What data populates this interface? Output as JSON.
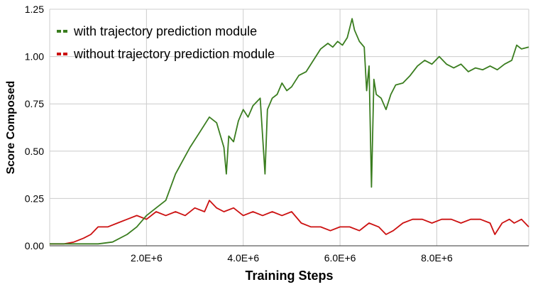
{
  "chart_data": {
    "type": "line",
    "title": "",
    "xlabel": "Training Steps",
    "ylabel": "Score Composed",
    "xlim": [
      0,
      9900000
    ],
    "ylim": [
      0,
      1.25
    ],
    "x_ticks": [
      {
        "value": 2000000,
        "label": "2.0E+6"
      },
      {
        "value": 4000000,
        "label": "4.0E+6"
      },
      {
        "value": 6000000,
        "label": "6.0E+6"
      },
      {
        "value": 8000000,
        "label": "8.0E+6"
      }
    ],
    "y_ticks": [
      {
        "value": 0,
        "label": "0.00"
      },
      {
        "value": 0.25,
        "label": "0.25"
      },
      {
        "value": 0.5,
        "label": "0.50"
      },
      {
        "value": 0.75,
        "label": "0.75"
      },
      {
        "value": 1.0,
        "label": "1.00"
      },
      {
        "value": 1.25,
        "label": "1.25"
      }
    ],
    "grid": true,
    "legend_position": "top-left",
    "series": [
      {
        "name": "with trajectory prediction module",
        "color": "#3a7d1f",
        "x": [
          0,
          500000,
          1000000,
          1300000,
          1600000,
          1800000,
          2000000,
          2200000,
          2400000,
          2600000,
          2750000,
          2900000,
          3100000,
          3300000,
          3450000,
          3600000,
          3650000,
          3700000,
          3800000,
          3900000,
          4000000,
          4100000,
          4200000,
          4350000,
          4450000,
          4500000,
          4600000,
          4700000,
          4800000,
          4900000,
          5000000,
          5150000,
          5300000,
          5450000,
          5600000,
          5750000,
          5850000,
          5950000,
          6050000,
          6150000,
          6250000,
          6300000,
          6400000,
          6500000,
          6550000,
          6600000,
          6650000,
          6700000,
          6750000,
          6850000,
          6950000,
          7050000,
          7150000,
          7300000,
          7450000,
          7600000,
          7750000,
          7900000,
          8050000,
          8200000,
          8350000,
          8500000,
          8650000,
          8800000,
          8950000,
          9100000,
          9250000,
          9400000,
          9550000,
          9650000,
          9750000,
          9900000
        ],
        "y": [
          0.01,
          0.01,
          0.01,
          0.02,
          0.06,
          0.1,
          0.16,
          0.2,
          0.24,
          0.38,
          0.45,
          0.52,
          0.6,
          0.68,
          0.65,
          0.52,
          0.38,
          0.58,
          0.55,
          0.66,
          0.72,
          0.68,
          0.74,
          0.78,
          0.38,
          0.72,
          0.78,
          0.8,
          0.86,
          0.82,
          0.84,
          0.9,
          0.92,
          0.98,
          1.04,
          1.07,
          1.05,
          1.08,
          1.06,
          1.1,
          1.2,
          1.14,
          1.08,
          1.05,
          0.82,
          0.95,
          0.31,
          0.88,
          0.8,
          0.78,
          0.72,
          0.8,
          0.85,
          0.86,
          0.9,
          0.95,
          0.98,
          0.96,
          1.0,
          0.96,
          0.94,
          0.96,
          0.92,
          0.94,
          0.93,
          0.95,
          0.93,
          0.96,
          0.98,
          1.06,
          1.04,
          1.05
        ]
      },
      {
        "name": "without trajectory prediction module",
        "color": "#cc1111",
        "x": [
          0,
          300000,
          500000,
          700000,
          850000,
          1000000,
          1200000,
          1400000,
          1600000,
          1800000,
          2000000,
          2200000,
          2400000,
          2600000,
          2800000,
          3000000,
          3200000,
          3300000,
          3450000,
          3600000,
          3800000,
          4000000,
          4200000,
          4400000,
          4600000,
          4800000,
          5000000,
          5200000,
          5400000,
          5600000,
          5800000,
          6000000,
          6200000,
          6400000,
          6600000,
          6800000,
          6950000,
          7100000,
          7300000,
          7500000,
          7700000,
          7900000,
          8100000,
          8300000,
          8500000,
          8700000,
          8900000,
          9100000,
          9200000,
          9350000,
          9500000,
          9600000,
          9750000,
          9900000
        ],
        "y": [
          0.01,
          0.01,
          0.02,
          0.04,
          0.06,
          0.1,
          0.1,
          0.12,
          0.14,
          0.16,
          0.14,
          0.18,
          0.16,
          0.18,
          0.16,
          0.2,
          0.18,
          0.24,
          0.2,
          0.18,
          0.2,
          0.16,
          0.18,
          0.16,
          0.18,
          0.16,
          0.18,
          0.12,
          0.1,
          0.1,
          0.08,
          0.1,
          0.1,
          0.08,
          0.12,
          0.1,
          0.06,
          0.08,
          0.12,
          0.14,
          0.14,
          0.12,
          0.14,
          0.14,
          0.12,
          0.14,
          0.14,
          0.12,
          0.06,
          0.12,
          0.14,
          0.12,
          0.14,
          0.1
        ]
      }
    ]
  }
}
